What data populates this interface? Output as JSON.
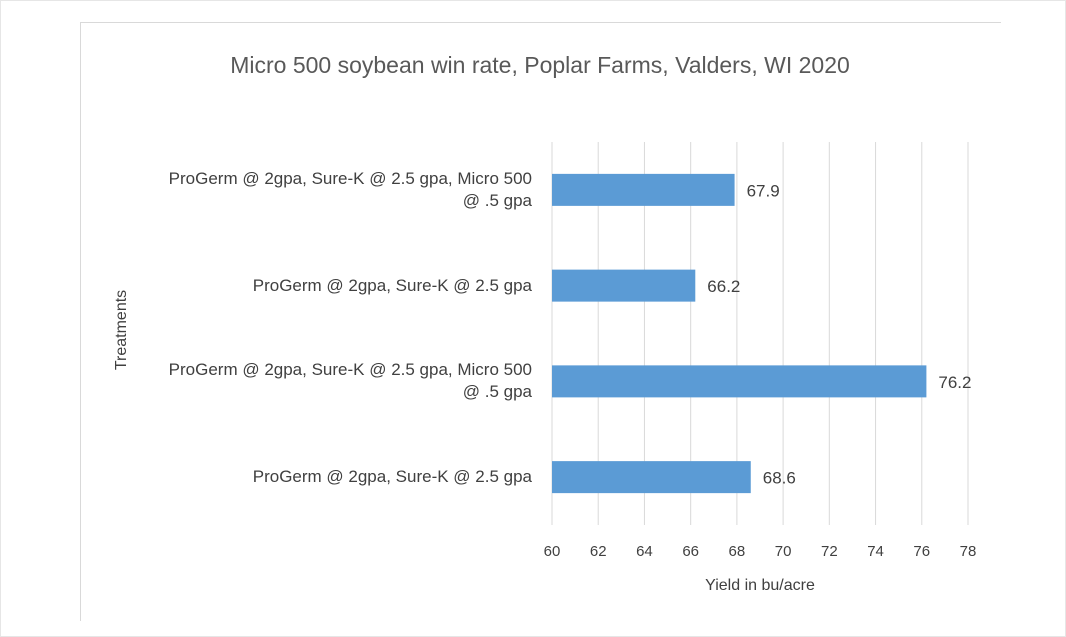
{
  "chart_data": {
    "type": "bar",
    "orientation": "horizontal",
    "title": "Micro 500 soybean win rate, Poplar Farms, Valders, WI 2020",
    "categories": [
      "ProGerm @ 2gpa, Sure-K @ 2.5 gpa, Micro 500 @ .5 gpa",
      "ProGerm @ 2gpa, Sure-K @ 2.5 gpa",
      "ProGerm @ 2gpa, Sure-K @ 2.5 gpa, Micro 500 @ .5 gpa",
      "ProGerm @ 2gpa, Sure-K @ 2.5 gpa"
    ],
    "values": [
      67.9,
      66.2,
      76.2,
      68.6
    ],
    "color": "#5b9bd5",
    "xlabel": "Yield in bu/acre",
    "ylabel": "Treatments",
    "xlim": [
      60,
      78
    ],
    "xticks": [
      60,
      62,
      64,
      66,
      68,
      70,
      72,
      74,
      76,
      78
    ],
    "grid": true
  }
}
